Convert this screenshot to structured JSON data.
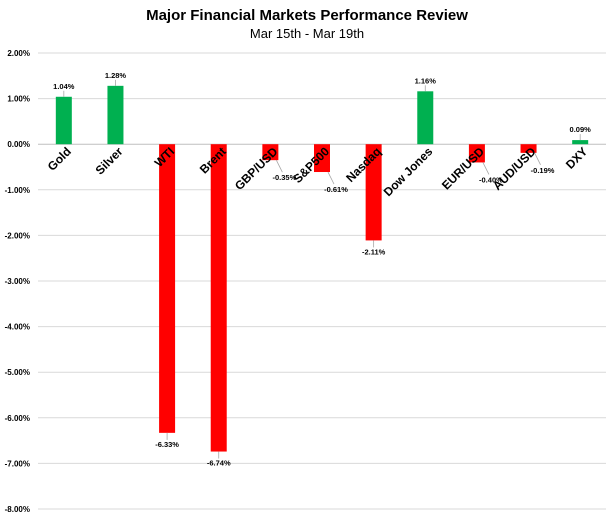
{
  "chart_data": {
    "type": "bar",
    "title": "Major Financial Markets Performance Review",
    "subtitle": "Mar 15th - Mar 19th",
    "categories": [
      "Gold",
      "Silver",
      "WTI",
      "Brent",
      "GBP/USD",
      "S&P500",
      "Nasdaq",
      "Dow Jones",
      "EUR/USD",
      "AUD/USD",
      "DXY"
    ],
    "values": [
      1.04,
      1.28,
      -6.33,
      -6.74,
      -0.35,
      -0.61,
      -2.11,
      1.16,
      -0.4,
      -0.19,
      0.09
    ],
    "data_labels": [
      "1.04%",
      "1.28%",
      "-6.33%",
      "-6.74%",
      "-0.35%",
      "-0.61%",
      "-2.11%",
      "1.16%",
      "-0.40%",
      "-0.19%",
      "0.09%"
    ],
    "ylim": [
      -8,
      2
    ],
    "yticks": [
      2,
      1,
      0,
      -1,
      -2,
      -3,
      -4,
      -5,
      -6,
      -7,
      -8
    ],
    "ytick_labels": [
      "2.00%",
      "1.00%",
      "0.00%",
      "-1.00%",
      "-2.00%",
      "-3.00%",
      "-4.00%",
      "-5.00%",
      "-6.00%",
      "-7.00%",
      "-8.00%"
    ],
    "xlabel": "",
    "ylabel": "",
    "grid": true,
    "legend": "none",
    "colors": {
      "positive": "#00b050",
      "negative": "#ff0000",
      "grid": "#d9d9d9"
    }
  }
}
